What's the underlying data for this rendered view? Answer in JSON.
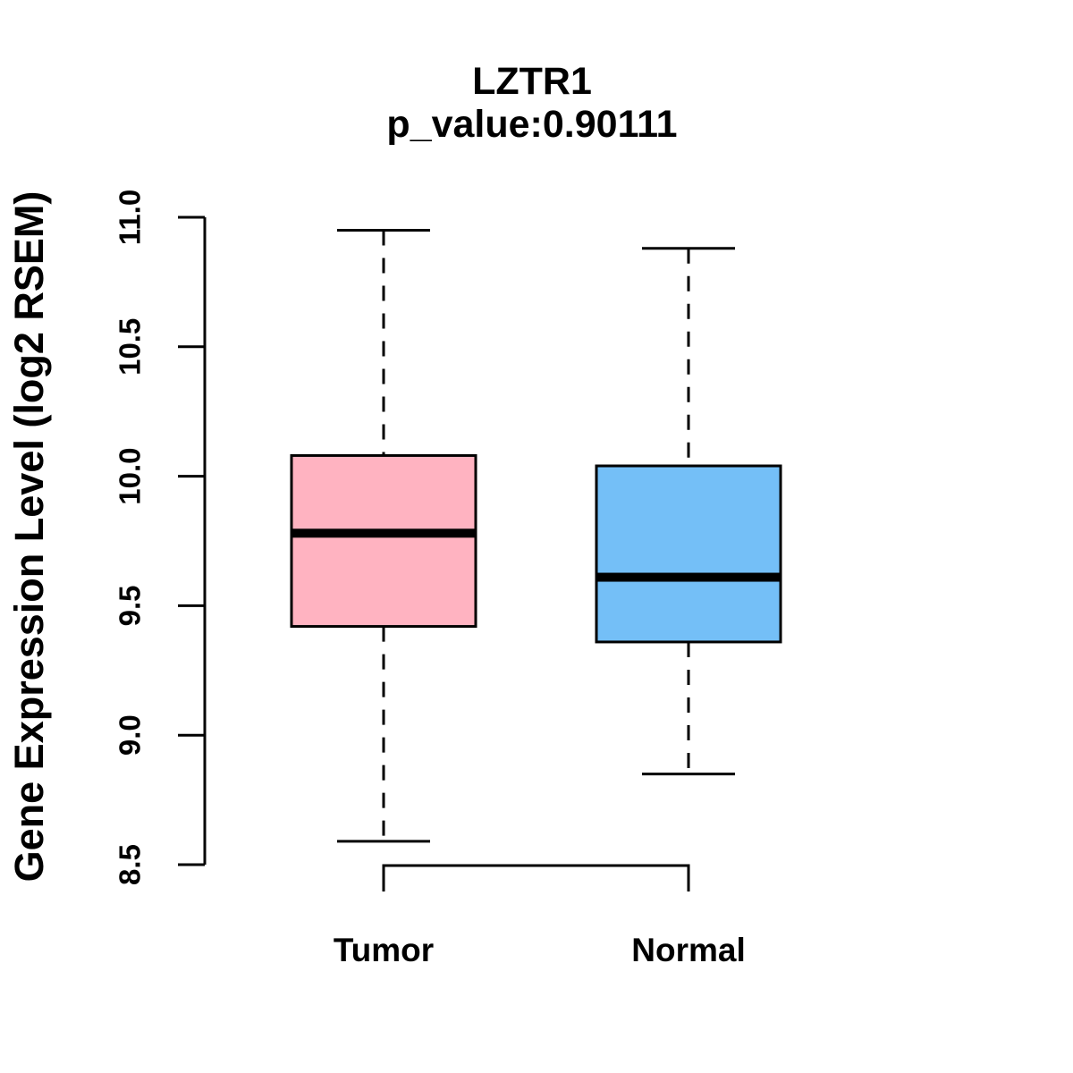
{
  "header": {
    "title": "LZTR1",
    "subtitle": "p_value:0.90111"
  },
  "chart_data": {
    "type": "boxplot",
    "title": "LZTR1",
    "subtitle": "p_value:0.90111",
    "xlabel": "",
    "ylabel": "Gene Expression Level (log2 RSEM)",
    "ylim": [
      8.5,
      11.0
    ],
    "grid": false,
    "legend": "none",
    "axis_color": "#000000",
    "yticks": [
      {
        "label": "8.5",
        "value": 8.5
      },
      {
        "label": "9.0",
        "value": 9.0
      },
      {
        "label": "9.5",
        "value": 9.5
      },
      {
        "label": "10.0",
        "value": 10.0
      },
      {
        "label": "10.5",
        "value": 10.5
      },
      {
        "label": "11.0",
        "value": 11.0
      }
    ],
    "categories": [
      "Tumor",
      "Normal"
    ],
    "groups": [
      {
        "label": "Tumor",
        "box_color": "#FFB3C1",
        "border_color": "#000000",
        "median_color": "#000000",
        "whisker_low": 8.59,
        "q1": 9.42,
        "median": 9.78,
        "q3": 10.08,
        "whisker_high": 10.95
      },
      {
        "label": "Normal",
        "box_color": "#74BFF7",
        "border_color": "#000000",
        "median_color": "#000000",
        "whisker_low": 8.85,
        "q1": 9.36,
        "median": 9.61,
        "q3": 10.04,
        "whisker_high": 10.88
      }
    ]
  }
}
